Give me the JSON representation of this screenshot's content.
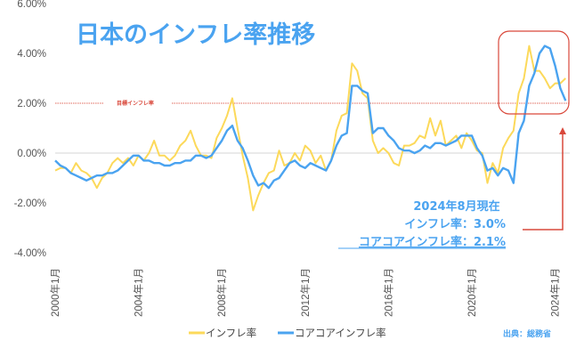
{
  "chart_data": {
    "type": "line",
    "title": "日本のインフレ率推移",
    "ylim": [
      -4,
      6
    ],
    "yticks": [
      "-4.00%",
      "-2.00%",
      "0.00%",
      "2.00%",
      "4.00%",
      "6.00%"
    ],
    "ytick_values": [
      -4,
      -2,
      0,
      2,
      4,
      6
    ],
    "xticks": [
      "2000年1月",
      "2004年1月",
      "2008年1月",
      "2012年1月",
      "2016年1月",
      "2020年1月",
      "2024年1月"
    ],
    "xtick_values": [
      2000,
      2004,
      2008,
      2012,
      2016,
      2020,
      2024
    ],
    "x_start": 2000,
    "x_step": 0.25,
    "target_line": {
      "label": "目標インフレ率",
      "value": 2
    },
    "series": [
      {
        "name": "インフレ率",
        "color": "#fcd95a",
        "values": [
          -0.7,
          -0.6,
          -0.6,
          -0.8,
          -0.4,
          -0.7,
          -0.8,
          -1.0,
          -1.4,
          -1.0,
          -0.8,
          -0.4,
          -0.2,
          -0.4,
          -0.2,
          -0.5,
          -0.1,
          -0.3,
          0.0,
          0.5,
          -0.1,
          -0.1,
          -0.3,
          -0.1,
          0.3,
          0.5,
          0.9,
          0.3,
          -0.1,
          -0.1,
          -0.2,
          0.6,
          1.0,
          1.5,
          2.2,
          1.0,
          -0.1,
          -1.0,
          -2.3,
          -1.7,
          -1.2,
          -0.8,
          -0.7,
          0.1,
          -0.5,
          -0.4,
          0.0,
          -0.3,
          0.3,
          0.1,
          -0.4,
          -0.1,
          -0.7,
          -0.3,
          0.9,
          1.5,
          1.6,
          3.6,
          3.3,
          2.4,
          2.2,
          0.5,
          0.0,
          0.2,
          0.0,
          -0.4,
          -0.5,
          0.3,
          0.3,
          0.4,
          0.7,
          0.6,
          1.4,
          0.7,
          1.3,
          0.3,
          0.5,
          0.7,
          0.2,
          0.8,
          0.5,
          0.1,
          0.0,
          -1.2,
          -0.4,
          -0.8,
          0.2,
          0.6,
          0.9,
          2.4,
          3.0,
          4.3,
          3.3,
          3.3,
          3.0,
          2.6,
          2.8,
          2.8,
          3.0
        ]
      },
      {
        "name": "コアコアインフレ率",
        "color": "#4aa3f0",
        "values": [
          -0.3,
          -0.5,
          -0.6,
          -0.8,
          -0.9,
          -1.0,
          -1.1,
          -1.0,
          -0.9,
          -0.9,
          -0.8,
          -0.8,
          -0.7,
          -0.5,
          -0.3,
          -0.1,
          -0.1,
          -0.3,
          -0.3,
          -0.4,
          -0.4,
          -0.5,
          -0.5,
          -0.4,
          -0.4,
          -0.3,
          -0.3,
          -0.1,
          -0.1,
          -0.2,
          -0.1,
          0.2,
          0.5,
          0.9,
          1.1,
          0.5,
          0.2,
          -0.3,
          -0.9,
          -1.3,
          -1.2,
          -1.4,
          -1.1,
          -1.0,
          -0.7,
          -0.4,
          -0.3,
          -0.5,
          -0.6,
          -0.4,
          -0.5,
          -0.6,
          -0.7,
          -0.3,
          0.3,
          0.7,
          0.8,
          2.7,
          2.7,
          2.5,
          2.4,
          0.8,
          1.0,
          1.0,
          0.7,
          0.5,
          0.2,
          0.1,
          0.1,
          0.0,
          0.1,
          0.3,
          0.2,
          0.4,
          0.4,
          0.3,
          0.4,
          0.5,
          0.7,
          0.7,
          0.7,
          0.2,
          -0.1,
          -0.7,
          -0.6,
          -0.9,
          -0.6,
          -0.7,
          -1.2,
          0.8,
          1.3,
          2.7,
          3.2,
          4.0,
          4.3,
          4.2,
          3.5,
          2.6,
          2.1
        ]
      }
    ],
    "legend": "bottom",
    "annotations": {
      "as_of": "2024年8月現在",
      "headline": "インフレ率：3.0%",
      "core": "コアコアインフレ率：2.1%"
    },
    "source": "出典：総務省"
  }
}
